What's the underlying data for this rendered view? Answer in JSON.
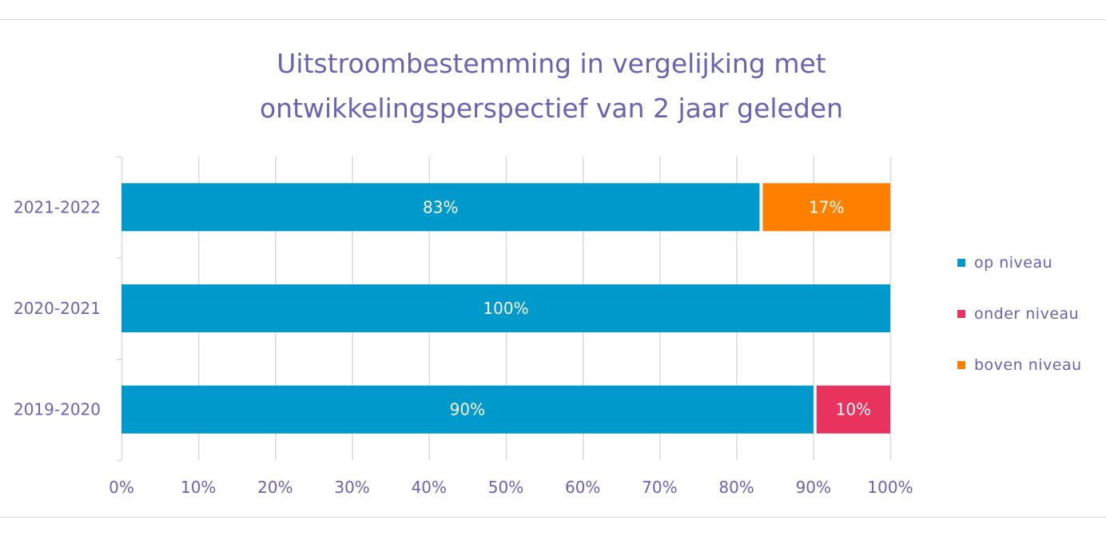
{
  "chart_data": {
    "type": "bar",
    "orientation": "horizontal",
    "stacked": true,
    "title": "Uitstroombestemming in vergelijking met ontwikkelingsperspectief van 2 jaar geleden",
    "title_lines": [
      "Uitstroombestemming in vergelijking met",
      "ontwikkelingsperspectief van 2 jaar geleden"
    ],
    "categories": [
      "2021-2022",
      "2020-2021",
      "2019-2020"
    ],
    "series": [
      {
        "name": "op niveau",
        "color": "#0099cc",
        "values": [
          83,
          100,
          90
        ],
        "labels": [
          "83%",
          "100%",
          "90%"
        ]
      },
      {
        "name": "onder niveau",
        "color": "#e8335f",
        "values": [
          0,
          0,
          10
        ],
        "labels": [
          "",
          "",
          "10%"
        ]
      },
      {
        "name": "boven niveau",
        "color": "#ff8000",
        "values": [
          17,
          0,
          0
        ],
        "labels": [
          "17%",
          "",
          ""
        ]
      }
    ],
    "xlim": [
      0,
      100
    ],
    "x_ticks": [
      0,
      10,
      20,
      30,
      40,
      50,
      60,
      70,
      80,
      90,
      100
    ],
    "x_tick_labels": [
      "0%",
      "10%",
      "20%",
      "30%",
      "40%",
      "50%",
      "60%",
      "70%",
      "80%",
      "90%",
      "100%"
    ],
    "grid": true,
    "legend": {
      "position": "right",
      "entries": [
        "op niveau",
        "onder niveau",
        "boven niveau"
      ]
    },
    "xlabel": "",
    "ylabel": ""
  },
  "colors": {
    "text": "#6a62b6",
    "grid": "#d9d9e3",
    "bar_label": "#ffffff"
  }
}
